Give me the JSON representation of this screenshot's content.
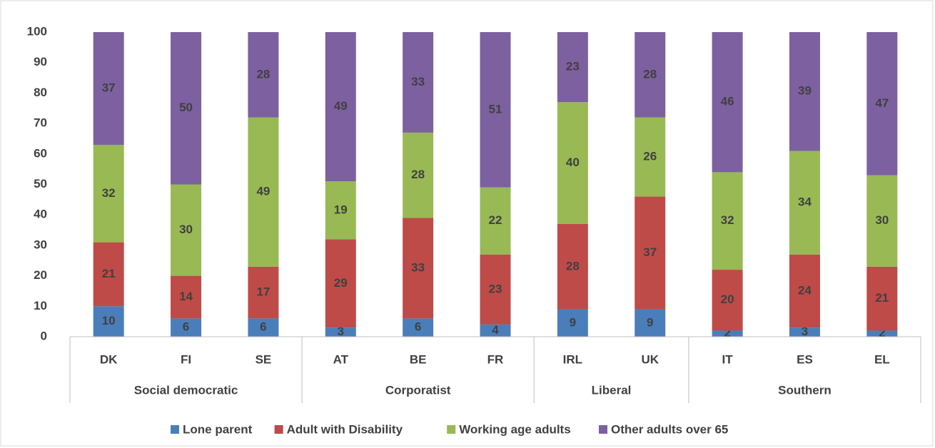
{
  "chart_data": {
    "type": "stacked_bar",
    "categories": [
      "DK",
      "FI",
      "SE",
      "AT",
      "BE",
      "FR",
      "IRL",
      "UK",
      "IT",
      "ES",
      "EL"
    ],
    "groups": [
      {
        "name": "Social democratic",
        "count": 3
      },
      {
        "name": "Corporatist",
        "count": 3
      },
      {
        "name": "Liberal",
        "count": 2
      },
      {
        "name": "Southern",
        "count": 3
      }
    ],
    "series": [
      {
        "name": "Lone parent",
        "color": "#4a7ebb",
        "values": [
          10,
          6,
          6,
          3,
          6,
          4,
          9,
          9,
          2,
          3,
          2
        ]
      },
      {
        "name": "Adult with Disability",
        "color": "#be4b48",
        "values": [
          21,
          14,
          17,
          29,
          33,
          23,
          28,
          37,
          20,
          24,
          21
        ]
      },
      {
        "name": "Working age adults",
        "color": "#98b954",
        "values": [
          32,
          30,
          49,
          19,
          28,
          22,
          40,
          26,
          32,
          34,
          30
        ]
      },
      {
        "name": "Other adults over 65",
        "color": "#7d60a0",
        "values": [
          37,
          50,
          28,
          49,
          33,
          51,
          23,
          28,
          46,
          39,
          47
        ]
      }
    ],
    "ylim": [
      0,
      100
    ],
    "yticks": [
      0,
      10,
      20,
      30,
      40,
      50,
      60,
      70,
      80,
      90,
      100
    ],
    "grid": false,
    "legend": "bottom"
  }
}
